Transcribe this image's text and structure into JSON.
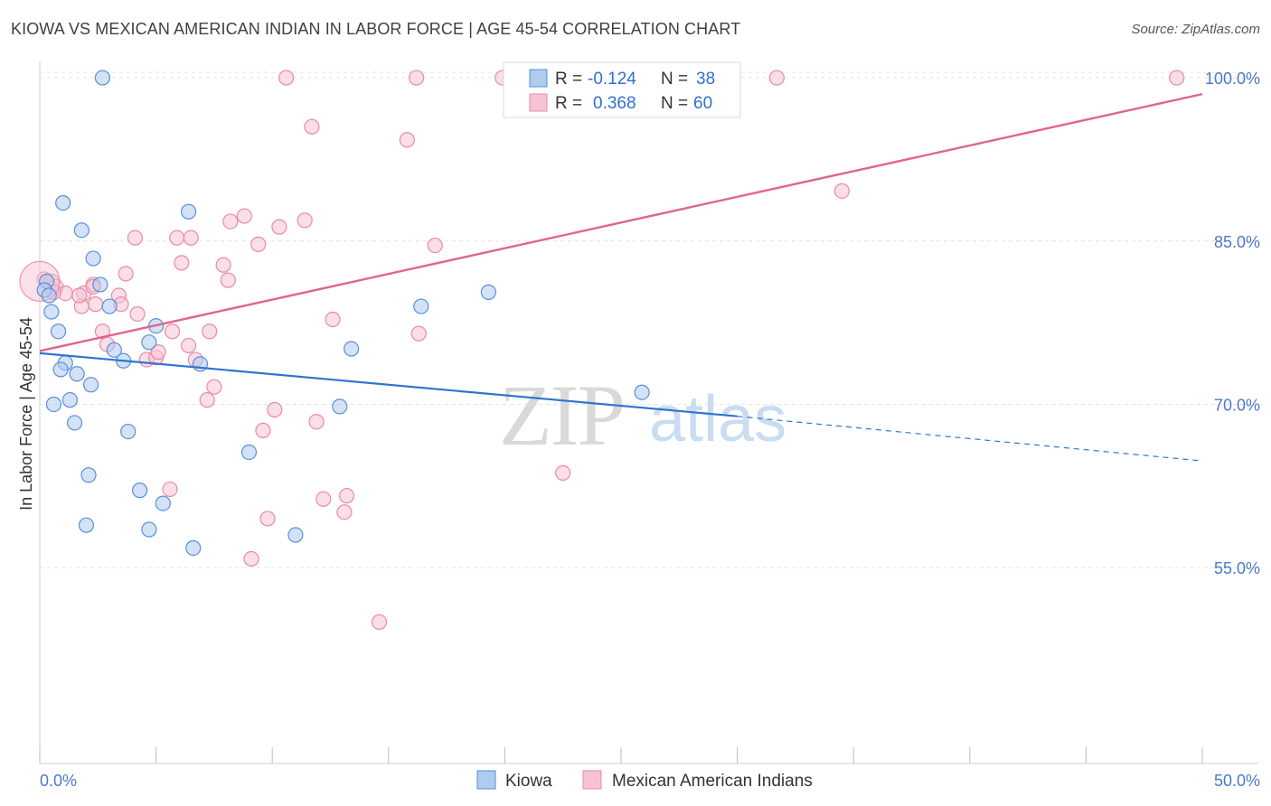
{
  "title": "KIOWA VS MEXICAN AMERICAN INDIAN IN LABOR FORCE | AGE 45-54 CORRELATION CHART",
  "source": "Source: ZipAtlas.com",
  "watermark": {
    "zip": "ZIP",
    "atlas": "atlas"
  },
  "colors": {
    "kiowa_fill": "#aecbf0",
    "kiowa_stroke": "#5b8fd6",
    "kiowa_line": "#2f74d0",
    "mai_fill": "#f7c3d3",
    "mai_stroke": "#e88aa8",
    "mai_line": "#e0658e",
    "tick_label": "#4a78c8",
    "grid": "#e3e3e3"
  },
  "legend": {
    "rows": [
      {
        "r_label": "R =",
        "r_value": "-0.124",
        "n_label": "N =",
        "n_value": "38"
      },
      {
        "r_label": "R =",
        "r_value": "0.368",
        "n_label": "N =",
        "n_value": "60"
      }
    ]
  },
  "bottom_legend": [
    "Kiowa",
    "Mexican American Indians"
  ],
  "chart_data": {
    "type": "scatter",
    "title": "KIOWA VS MEXICAN AMERICAN INDIAN IN LABOR FORCE | AGE 45-54 CORRELATION CHART",
    "xlabel": "",
    "ylabel": "In Labor Force | Age 45-54",
    "xlim": [
      0,
      50
    ],
    "ylim": [
      37,
      101.5
    ],
    "x_tick_labels": [
      "0.0%",
      "50.0%"
    ],
    "y_ticks": [
      55,
      70,
      85,
      100
    ],
    "y_tick_labels": [
      "55.0%",
      "70.0%",
      "85.0%",
      "100.0%"
    ],
    "grid": true,
    "legend_position": "top-center",
    "series": [
      {
        "name": "Kiowa",
        "R": -0.124,
        "N": 38,
        "trend": {
          "x0": 0,
          "y0": 74.7,
          "x1": 30,
          "y1": 68.9,
          "dashed_to_x": 50,
          "dashed_to_y": 64.8
        },
        "points": [
          [
            2.7,
            100.0
          ],
          [
            1.0,
            88.5
          ],
          [
            1.8,
            86.0
          ],
          [
            6.4,
            87.7
          ],
          [
            2.3,
            83.4
          ],
          [
            2.6,
            81.0
          ],
          [
            0.3,
            81.3
          ],
          [
            0.2,
            80.5
          ],
          [
            0.4,
            80.0
          ],
          [
            0.5,
            78.5
          ],
          [
            3.0,
            79.0
          ],
          [
            0.8,
            76.7
          ],
          [
            5.0,
            77.2
          ],
          [
            4.7,
            75.7
          ],
          [
            3.2,
            75.0
          ],
          [
            3.6,
            74.0
          ],
          [
            6.9,
            73.7
          ],
          [
            1.1,
            73.8
          ],
          [
            0.9,
            73.2
          ],
          [
            1.6,
            72.8
          ],
          [
            2.2,
            71.8
          ],
          [
            1.3,
            70.4
          ],
          [
            0.6,
            70.0
          ],
          [
            1.5,
            68.3
          ],
          [
            3.8,
            67.5
          ],
          [
            9.0,
            65.6
          ],
          [
            2.1,
            63.5
          ],
          [
            4.3,
            62.1
          ],
          [
            5.3,
            60.9
          ],
          [
            2.0,
            58.9
          ],
          [
            4.7,
            58.5
          ],
          [
            6.6,
            56.8
          ],
          [
            11.0,
            58.0
          ],
          [
            13.4,
            75.1
          ],
          [
            12.9,
            69.8
          ],
          [
            16.4,
            79.0
          ],
          [
            19.3,
            80.3
          ],
          [
            25.9,
            71.1
          ]
        ]
      },
      {
        "name": "Mexican American Indians",
        "R": 0.368,
        "N": 60,
        "trend": {
          "x0": 0,
          "y0": 74.9,
          "x1": 50,
          "y1": 98.5
        },
        "points": [
          [
            0.2,
            81.5
          ],
          [
            0.5,
            81.3
          ],
          [
            0.7,
            80.8
          ],
          [
            1.1,
            80.2
          ],
          [
            1.8,
            79.0
          ],
          [
            2.3,
            81.0
          ],
          [
            2.4,
            79.2
          ],
          [
            3.4,
            80.0
          ],
          [
            3.5,
            79.2
          ],
          [
            3.7,
            82.0
          ],
          [
            1.9,
            80.2
          ],
          [
            4.2,
            78.3
          ],
          [
            2.7,
            76.7
          ],
          [
            2.9,
            75.5
          ],
          [
            4.6,
            74.1
          ],
          [
            5.0,
            74.3
          ],
          [
            5.1,
            74.8
          ],
          [
            5.7,
            76.7
          ],
          [
            6.4,
            75.4
          ],
          [
            6.7,
            74.1
          ],
          [
            7.3,
            76.7
          ],
          [
            7.5,
            71.6
          ],
          [
            7.2,
            70.4
          ],
          [
            4.1,
            85.3
          ],
          [
            5.9,
            85.3
          ],
          [
            6.5,
            85.3
          ],
          [
            6.1,
            83.0
          ],
          [
            7.9,
            82.8
          ],
          [
            8.1,
            81.4
          ],
          [
            8.2,
            86.8
          ],
          [
            8.8,
            87.3
          ],
          [
            9.4,
            84.7
          ],
          [
            10.3,
            86.3
          ],
          [
            11.4,
            86.9
          ],
          [
            9.6,
            67.6
          ],
          [
            10.1,
            69.5
          ],
          [
            11.9,
            68.4
          ],
          [
            9.8,
            59.5
          ],
          [
            12.2,
            61.3
          ],
          [
            13.1,
            60.1
          ],
          [
            13.2,
            61.6
          ],
          [
            12.6,
            77.8
          ],
          [
            14.6,
            50.0
          ],
          [
            9.1,
            55.8
          ],
          [
            5.6,
            62.2
          ],
          [
            11.7,
            95.5
          ],
          [
            15.8,
            94.3
          ],
          [
            17.0,
            84.6
          ],
          [
            16.3,
            76.5
          ],
          [
            22.5,
            63.7
          ],
          [
            10.6,
            100.0
          ],
          [
            16.2,
            100.0
          ],
          [
            19.9,
            100.0
          ],
          [
            26.9,
            100.0
          ],
          [
            31.7,
            100.0
          ],
          [
            48.9,
            100.0
          ],
          [
            34.5,
            89.6
          ],
          [
            2.3,
            80.8
          ],
          [
            0.6,
            80.3
          ],
          [
            1.7,
            80.0
          ]
        ]
      }
    ]
  }
}
